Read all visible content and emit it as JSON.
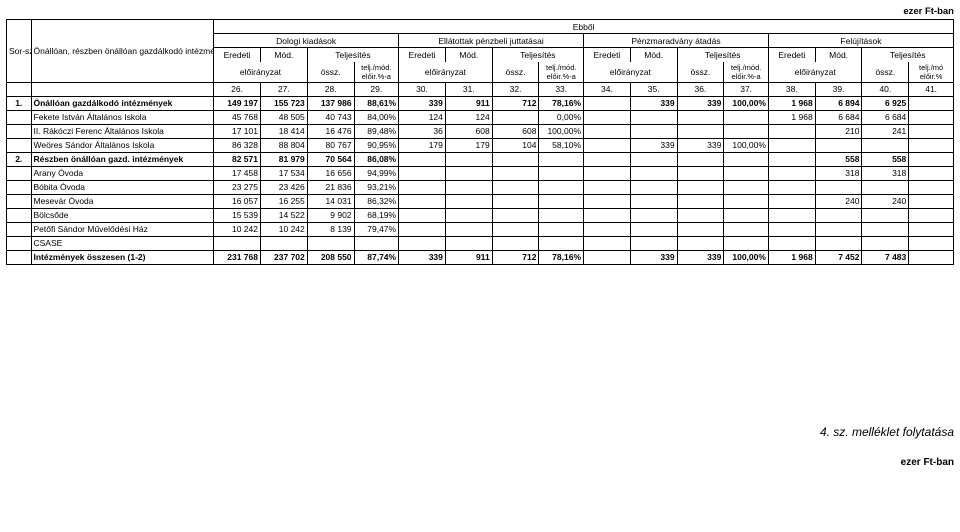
{
  "unit_label": "ezer Ft-ban",
  "header": {
    "sorsz": "Sor-sz.",
    "name": "Önállóan, részben önállóan gazdálkodó intézmények neve",
    "top": "Ebből",
    "groups": [
      "Dologi kiadások",
      "Ellátottak pénzbeli juttatásai",
      "Pénzmaradvány átadás",
      "Felújítások"
    ],
    "sub": [
      "Eredeti",
      "Mód.",
      "Teljesítés"
    ],
    "row3_label": "előirányzat",
    "row3_ossz": "össz.",
    "row3_telj": "telj./mód. előir.%-a",
    "row3_telj_last": "telj./mó előir.%",
    "colnums": [
      "26.",
      "27.",
      "28.",
      "29.",
      "30.",
      "31.",
      "32.",
      "33.",
      "34.",
      "35.",
      "36.",
      "37.",
      "38.",
      "39.",
      "40.",
      "41."
    ]
  },
  "rows": [
    {
      "n": "1.",
      "label": "Önállóan gazdálkodó intézmények",
      "bold": true,
      "v": [
        "149 197",
        "155 723",
        "137 986",
        "88,61%",
        "339",
        "911",
        "712",
        "78,16%",
        "",
        "339",
        "339",
        "100,00%",
        "1 968",
        "6 894",
        "6 925",
        ""
      ]
    },
    {
      "n": "",
      "label": "Fekete István Általános Iskola",
      "v": [
        "45 768",
        "48 505",
        "40 743",
        "84,00%",
        "124",
        "124",
        "",
        "0,00%",
        "",
        "",
        "",
        "",
        "1 968",
        "6 684",
        "6 684",
        ""
      ]
    },
    {
      "n": "",
      "label": "II. Rákóczi Ferenc Általános Iskola",
      "v": [
        "17 101",
        "18 414",
        "16 476",
        "89,48%",
        "36",
        "608",
        "608",
        "100,00%",
        "",
        "",
        "",
        "",
        "",
        "210",
        "241",
        ""
      ]
    },
    {
      "n": "",
      "label": "Weöres Sándor Általános Iskola",
      "v": [
        "86 328",
        "88 804",
        "80 767",
        "90,95%",
        "179",
        "179",
        "104",
        "58,10%",
        "",
        "339",
        "339",
        "100,00%",
        "",
        "",
        "",
        ""
      ]
    },
    {
      "n": "2.",
      "label": "Részben önállóan gazd. intézmények",
      "bold": true,
      "v": [
        "82 571",
        "81 979",
        "70 564",
        "86,08%",
        "",
        "",
        "",
        "",
        "",
        "",
        "",
        "",
        "",
        "558",
        "558",
        ""
      ]
    },
    {
      "n": "",
      "label": "Arany Óvoda",
      "v": [
        "17 458",
        "17 534",
        "16 656",
        "94,99%",
        "",
        "",
        "",
        "",
        "",
        "",
        "",
        "",
        "",
        "318",
        "318",
        ""
      ]
    },
    {
      "n": "",
      "label": "Bóbita Óvoda",
      "v": [
        "23 275",
        "23 426",
        "21 836",
        "93,21%",
        "",
        "",
        "",
        "",
        "",
        "",
        "",
        "",
        "",
        "",
        "",
        ""
      ]
    },
    {
      "n": "",
      "label": "Mesevár Óvoda",
      "v": [
        "16 057",
        "16 255",
        "14 031",
        "86,32%",
        "",
        "",
        "",
        "",
        "",
        "",
        "",
        "",
        "",
        "240",
        "240",
        ""
      ]
    },
    {
      "n": "",
      "label": "Bölcsőde",
      "v": [
        "15 539",
        "14 522",
        "9 902",
        "68,19%",
        "",
        "",
        "",
        "",
        "",
        "",
        "",
        "",
        "",
        "",
        "",
        ""
      ]
    },
    {
      "n": "",
      "label": "Petőfi Sándor Művelődési Ház",
      "v": [
        "10 242",
        "10 242",
        "8 139",
        "79,47%",
        "",
        "",
        "",
        "",
        "",
        "",
        "",
        "",
        "",
        "",
        "",
        ""
      ]
    },
    {
      "n": "",
      "label": "CSASE",
      "v": [
        "",
        "",
        "",
        "",
        "",
        "",
        "",
        "",
        "",
        "",
        "",
        "",
        "",
        "",
        "",
        ""
      ]
    },
    {
      "n": "",
      "label": "Intézmények összesen (1-2)",
      "bold": true,
      "v": [
        "231 768",
        "237 702",
        "208 550",
        "87,74%",
        "339",
        "911",
        "712",
        "78,16%",
        "",
        "339",
        "339",
        "100,00%",
        "1 968",
        "7 452",
        "7 483",
        ""
      ]
    }
  ],
  "footer_note": "4. sz. melléklet folytatása",
  "unit_label_bottom": "ezer Ft-ban"
}
